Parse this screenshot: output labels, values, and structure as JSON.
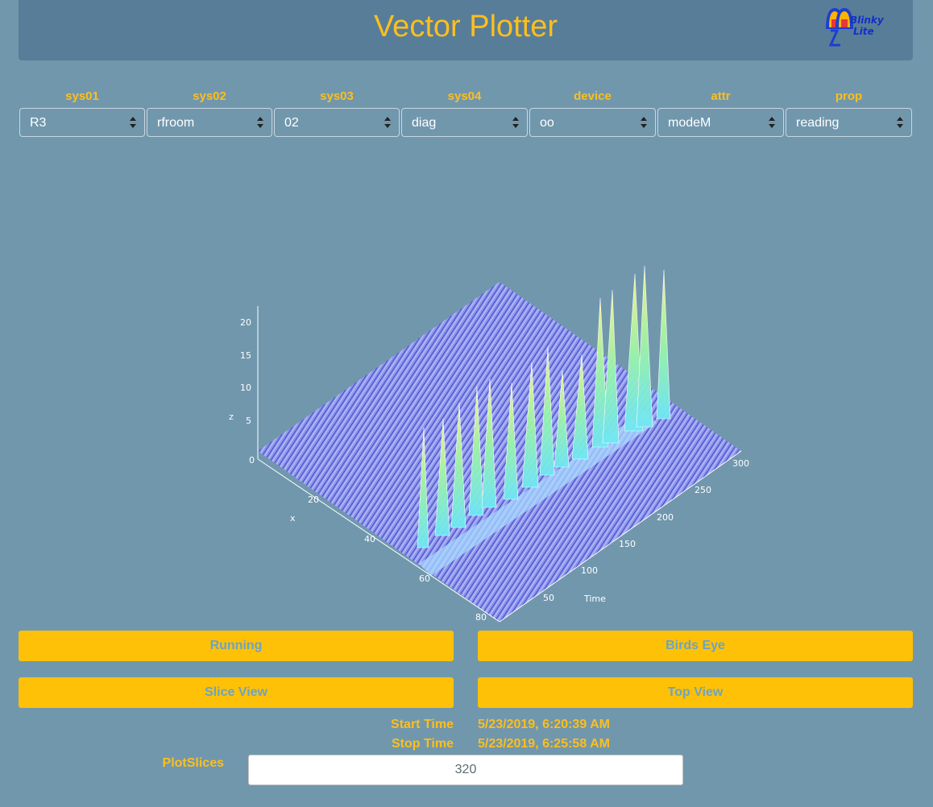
{
  "header": {
    "title": "Vector Plotter",
    "logo_line1": "Blinky",
    "logo_line2": "Lite"
  },
  "selectors": [
    {
      "label": "sys01",
      "value": "R3"
    },
    {
      "label": "sys02",
      "value": "rfroom"
    },
    {
      "label": "sys03",
      "value": "02"
    },
    {
      "label": "sys04",
      "value": "diag"
    },
    {
      "label": "device",
      "value": "oo"
    },
    {
      "label": "attr",
      "value": "modeM"
    },
    {
      "label": "prop",
      "value": "reading"
    }
  ],
  "plot": {
    "z_label": "z",
    "x_label": "x",
    "time_label": "Time",
    "z_ticks": [
      "0",
      "5",
      "10",
      "15",
      "20"
    ],
    "x_ticks": [
      "20",
      "40",
      "60",
      "80"
    ],
    "time_ticks": [
      "50",
      "100",
      "150",
      "200",
      "250",
      "300"
    ]
  },
  "buttons": {
    "running": "Running",
    "birds_eye": "Birds Eye",
    "slice_view": "Slice View",
    "top_view": "Top View"
  },
  "info": {
    "start_label": "Start Time",
    "start_value": "5/23/2019, 6:20:39 AM",
    "stop_label": "Stop Time",
    "stop_value": "5/23/2019, 6:25:58 AM",
    "slices_label": "PlotSlices",
    "slices_value": "320"
  },
  "colors": {
    "accent": "#fcbf1e",
    "background": "#7197ad",
    "header": "#587d98",
    "button": "#ffc107"
  }
}
